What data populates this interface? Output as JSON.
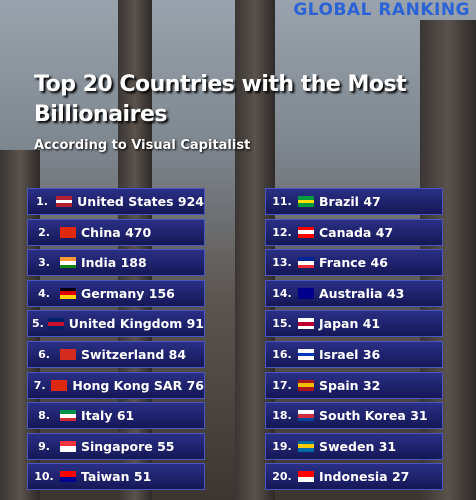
{
  "brand": "GLOBAL RANKING",
  "title": "Top 20 Countries with the Most Billionaires",
  "subtitle": "According  to  Visual Capitalist",
  "rows": [
    {
      "rank": "1.",
      "country": "United States",
      "billionaires": 924
    },
    {
      "rank": "2.",
      "country": "China",
      "billionaires": 470
    },
    {
      "rank": "3.",
      "country": "India",
      "billionaires": 188
    },
    {
      "rank": "4.",
      "country": "Germany",
      "billionaires": 156
    },
    {
      "rank": "5.",
      "country": "United Kingdom",
      "billionaires": 91
    },
    {
      "rank": "6.",
      "country": "Switzerland",
      "billionaires": 84
    },
    {
      "rank": "7.",
      "country": "Hong Kong SAR",
      "billionaires": 76
    },
    {
      "rank": "8.",
      "country": "Italy",
      "billionaires": 61
    },
    {
      "rank": "9.",
      "country": "Singapore",
      "billionaires": 55
    },
    {
      "rank": "10.",
      "country": "Taiwan",
      "billionaires": 51
    },
    {
      "rank": "11.",
      "country": "Brazil",
      "billionaires": 47
    },
    {
      "rank": "12.",
      "country": "Canada",
      "billionaires": 47
    },
    {
      "rank": "13.",
      "country": "France",
      "billionaires": 46
    },
    {
      "rank": "14.",
      "country": "Australia",
      "billionaires": 43
    },
    {
      "rank": "15.",
      "country": "Japan",
      "billionaires": 41
    },
    {
      "rank": "16.",
      "country": "Israel",
      "billionaires": 36
    },
    {
      "rank": "17.",
      "country": "Spain",
      "billionaires": 32
    },
    {
      "rank": "18.",
      "country": "South Korea",
      "billionaires": 31
    },
    {
      "rank": "19.",
      "country": "Sweden",
      "billionaires": 31
    },
    {
      "rank": "20.",
      "country": "Indonesia",
      "billionaires": 27
    }
  ]
}
